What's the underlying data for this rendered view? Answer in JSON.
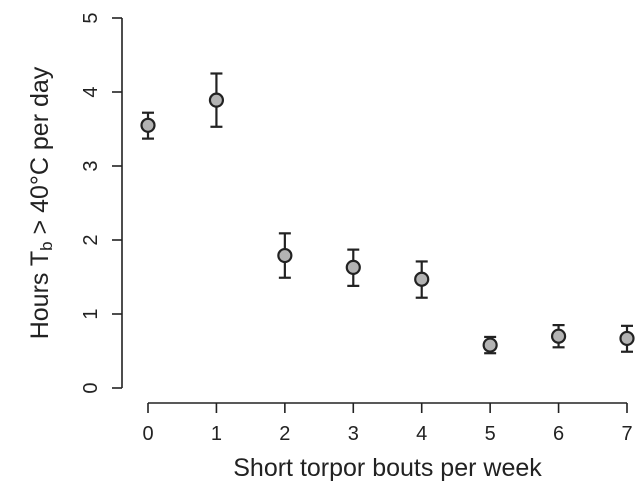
{
  "chart_data": {
    "type": "scatter",
    "title": "",
    "xlabel": "Short torpor bouts per week",
    "ylabel": {
      "prefix": "Hours T",
      "subscript": "b",
      "suffix": " > 40°C per day"
    },
    "xlim": [
      0,
      7
    ],
    "ylim": [
      0,
      5
    ],
    "x_ticks": [
      0,
      1,
      2,
      3,
      4,
      5,
      6,
      7
    ],
    "y_ticks": [
      0,
      1,
      2,
      3,
      4,
      5
    ],
    "grid": false,
    "legend": "none",
    "point_fill": "#b3b3b3",
    "line_color": "#222222",
    "series": [
      {
        "points": [
          {
            "x": 0,
            "y": 3.55,
            "lo": 3.37,
            "hi": 3.72
          },
          {
            "x": 1,
            "y": 3.89,
            "lo": 3.53,
            "hi": 4.25
          },
          {
            "x": 2,
            "y": 1.79,
            "lo": 1.49,
            "hi": 2.09
          },
          {
            "x": 3,
            "y": 1.63,
            "lo": 1.38,
            "hi": 1.87
          },
          {
            "x": 4,
            "y": 1.47,
            "lo": 1.22,
            "hi": 1.71
          },
          {
            "x": 5,
            "y": 0.58,
            "lo": 0.47,
            "hi": 0.69
          },
          {
            "x": 6,
            "y": 0.7,
            "lo": 0.55,
            "hi": 0.85
          },
          {
            "x": 7,
            "y": 0.67,
            "lo": 0.49,
            "hi": 0.84
          }
        ]
      }
    ]
  }
}
